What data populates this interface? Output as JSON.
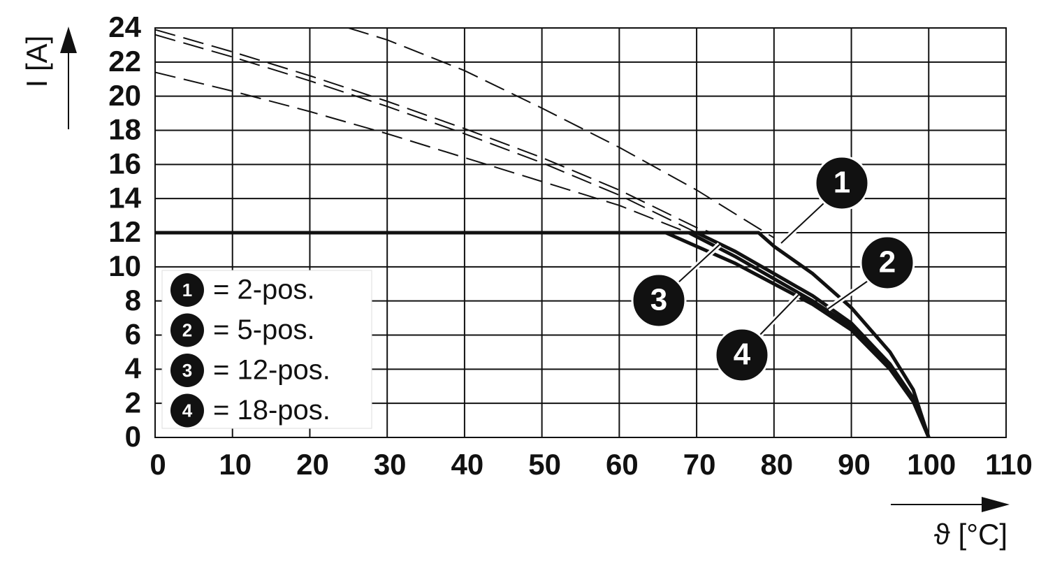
{
  "chart_data": {
    "type": "line",
    "y_label": "I [A]",
    "x_label": "ϑ [°C]",
    "xlim": [
      0,
      110
    ],
    "xticks": [
      0,
      10,
      20,
      30,
      40,
      50,
      60,
      70,
      80,
      90,
      100,
      110
    ],
    "ylim": [
      0,
      24
    ],
    "yticks": [
      0,
      2,
      4,
      6,
      8,
      10,
      12,
      14,
      16,
      18,
      20,
      22,
      24
    ],
    "grid": true,
    "color": "#111111",
    "series": [
      {
        "name": "= 2-pos.",
        "marker": "1",
        "x": [
          0,
          78,
          80,
          85,
          90,
          95,
          98,
          100
        ],
        "values": [
          12,
          12,
          11.2,
          9.6,
          7.6,
          5,
          2.8,
          0
        ],
        "base_x": [
          25,
          30,
          40,
          50,
          60,
          70,
          80
        ],
        "base_values": [
          24,
          23.3,
          21.5,
          19.3,
          17,
          14.5,
          11.7
        ]
      },
      {
        "name": "= 5-pos.",
        "marker": "2",
        "x": [
          0,
          70,
          75,
          80,
          85,
          90,
          95,
          98,
          100
        ],
        "values": [
          12,
          12,
          10.9,
          9.6,
          8.3,
          6.7,
          4.3,
          2.3,
          0
        ],
        "base_x": [
          0,
          10,
          20,
          30,
          40,
          50,
          60,
          70,
          72
        ],
        "base_values": [
          23.9,
          22.6,
          21.2,
          19.7,
          18.1,
          16.4,
          14.5,
          12.3,
          12
        ]
      },
      {
        "name": "= 12-pos.",
        "marker": "3",
        "x": [
          0,
          69,
          75,
          80,
          85,
          90,
          95,
          98,
          100
        ],
        "values": [
          12,
          12,
          10.6,
          9.3,
          8,
          6.5,
          4.1,
          2.2,
          0
        ],
        "base_x": [
          0,
          10,
          20,
          30,
          40,
          50,
          60,
          70
        ],
        "base_values": [
          23.6,
          22.3,
          20.9,
          19.4,
          17.8,
          16.1,
          14.2,
          12
        ]
      },
      {
        "name": "= 18-pos.",
        "marker": "4",
        "x": [
          0,
          66,
          70,
          75,
          80,
          85,
          90,
          95,
          98,
          100
        ],
        "values": [
          12,
          12,
          11.2,
          10.2,
          9,
          7.8,
          6.3,
          4,
          2.1,
          0
        ],
        "base_x": [
          0,
          10,
          20,
          30,
          40,
          50,
          60,
          70
        ],
        "base_values": [
          21.4,
          20.3,
          19.1,
          17.8,
          16.4,
          15,
          13.6,
          11.8
        ]
      }
    ]
  }
}
